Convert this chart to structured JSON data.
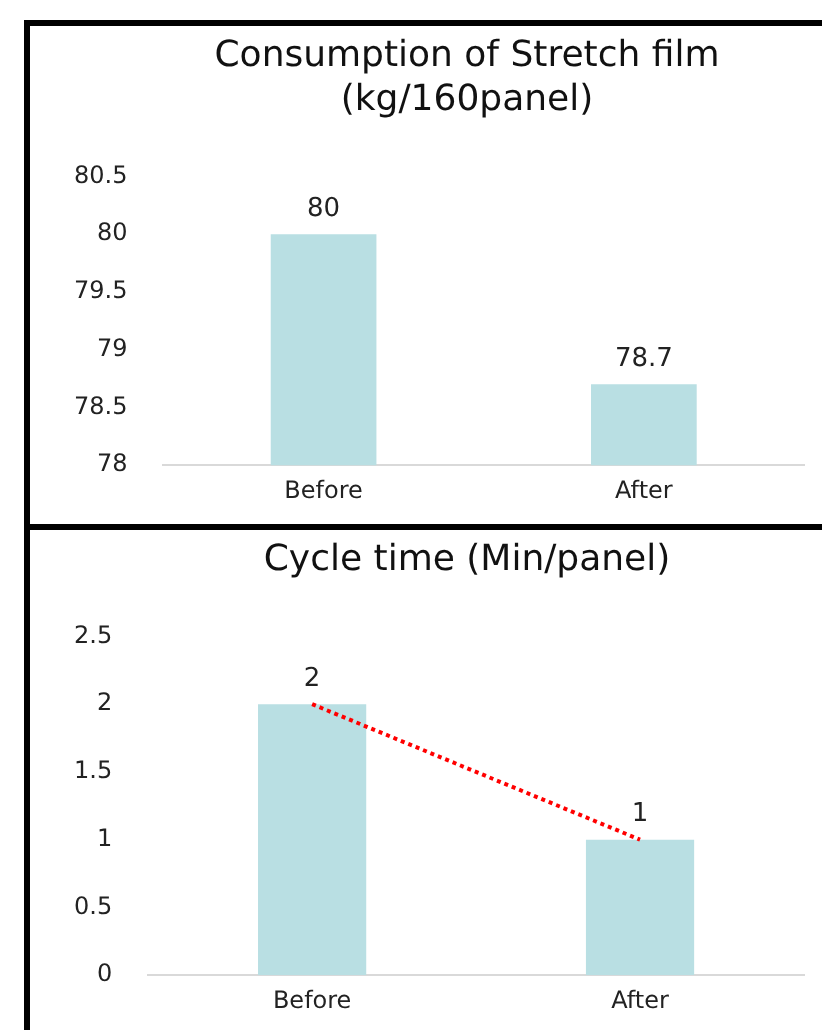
{
  "chart_data": [
    {
      "type": "bar",
      "title": "Consumption of Stretch film (kg/160panel)",
      "categories": [
        "Before",
        "After"
      ],
      "series": [
        {
          "color": "#b9dfe3",
          "values": [
            80,
            78.7
          ]
        }
      ],
      "ylim": [
        78,
        80.5
      ],
      "yticks": [
        78,
        78.5,
        79,
        79.5,
        80,
        80.5
      ],
      "grid": false,
      "legend": false,
      "data_labels": true
    },
    {
      "type": "bar",
      "title": "Cycle time (Min/panel)",
      "categories": [
        "Before",
        "After"
      ],
      "series": [
        {
          "color": "#b9dfe3",
          "values": [
            2,
            1
          ],
          "value_labels": [
            "2",
            "1"
          ]
        },
        {
          "type": "line",
          "color": "#ff0000",
          "values": [
            2,
            1
          ],
          "line_style": "dotted",
          "marker": "none"
        }
      ],
      "ylim": [
        0,
        2.5
      ],
      "yticks": [
        0,
        0.5,
        1,
        1.5,
        2,
        2.5
      ],
      "grid": false,
      "legend": false
    }
  ]
}
